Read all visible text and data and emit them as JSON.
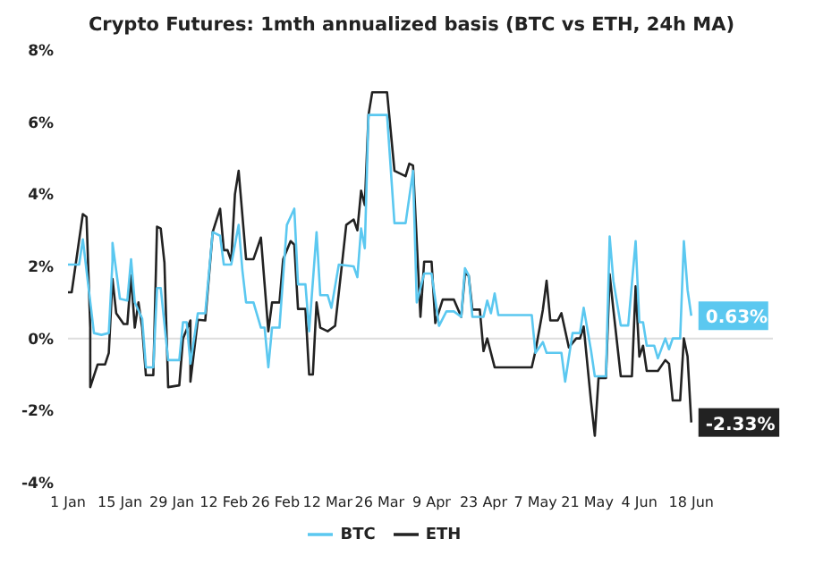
{
  "chart_data": {
    "type": "line",
    "title": "Crypto Futures: 1mth annualized basis (BTC vs ETH, 24h MA)",
    "xlim": [
      "--01-01",
      "--07-10"
    ],
    "xticks": [
      {
        "value": "--01-01",
        "label": "1 Jan"
      },
      {
        "value": "--01-15",
        "label": "15 Jan"
      },
      {
        "value": "--01-29",
        "label": "29 Jan"
      },
      {
        "value": "--02-12",
        "label": "12 Feb"
      },
      {
        "value": "--02-26",
        "label": "26 Feb"
      },
      {
        "value": "--03-12",
        "label": "12 Mar"
      },
      {
        "value": "--03-26",
        "label": "26 Mar"
      },
      {
        "value": "--04-09",
        "label": "9 Apr"
      },
      {
        "value": "--04-23",
        "label": "23 Apr"
      },
      {
        "value": "--05-07",
        "label": "7 May"
      },
      {
        "value": "--05-21",
        "label": "21 May"
      },
      {
        "value": "--06-04",
        "label": "4 Jun"
      },
      {
        "value": "--06-18",
        "label": "18 Jun"
      }
    ],
    "ylim": [
      -4,
      8
    ],
    "yticks": [
      {
        "value": -4,
        "label": "-4%"
      },
      {
        "value": -2,
        "label": "-2%"
      },
      {
        "value": 0,
        "label": "0%"
      },
      {
        "value": 2,
        "label": "2%"
      },
      {
        "value": 4,
        "label": "4%"
      },
      {
        "value": 6,
        "label": "6%"
      },
      {
        "value": 8,
        "label": "8%"
      }
    ],
    "grid": false,
    "legend": "bottom",
    "marker": "none",
    "line_style": "solid",
    "ref_lines": [
      {
        "axis": "y",
        "value": 0,
        "color": "#dddddd"
      }
    ],
    "annotations": [
      {
        "text": "0.63%",
        "x": "--06-18",
        "y": 0.63
      },
      {
        "text": "-2.33%",
        "x": "--06-18",
        "y": -2.33
      }
    ],
    "series": [
      {
        "name": "ETH",
        "color": "#222222",
        "x": [
          "--01-01",
          "--01-02",
          "--01-05",
          "--01-06",
          "--01-07",
          "--01-07",
          "--01-09",
          "--01-11",
          "--01-12",
          "--01-13",
          "--01-14",
          "--01-16",
          "--01-17",
          "--01-18",
          "--01-19",
          "--01-20",
          "--01-21",
          "--01-22",
          "--01-24",
          "--01-25",
          "--01-26",
          "--01-27",
          "--01-28",
          "--01-31",
          "--02-01",
          "--02-03",
          "--02-03",
          "--02-05",
          "--02-07",
          "--02-09",
          "--02-11",
          "--02-12",
          "--02-13",
          "--02-14",
          "--02-15",
          "--02-16",
          "--02-18",
          "--02-20",
          "--02-22",
          "--02-23",
          "--02-24",
          "--02-25",
          "--02-27",
          "--02-28",
          "--03-02",
          "--03-03",
          "--03-04",
          "--03-06",
          "--03-07",
          "--03-08",
          "--03-09",
          "--03-10",
          "--03-12",
          "--03-14",
          "--03-16",
          "--03-17",
          "--03-19",
          "--03-20",
          "--03-21",
          "--03-22",
          "--03-23",
          "--03-24",
          "--03-28",
          "--03-30",
          "--04-02",
          "--04-03",
          "--04-04",
          "--04-06",
          "--04-07",
          "--04-09",
          "--04-10",
          "--04-12",
          "--04-15",
          "--04-17",
          "--04-18",
          "--04-19",
          "--04-20",
          "--04-22",
          "--04-23",
          "--04-24",
          "--04-26",
          "--05-06",
          "--05-07",
          "--05-09",
          "--05-10",
          "--05-11",
          "--05-13",
          "--05-14",
          "--05-16",
          "--05-18",
          "--05-19",
          "--05-20",
          "--05-22",
          "--05-22",
          "--05-23",
          "--05-24",
          "--05-26",
          "--05-27",
          "--05-28",
          "--05-30",
          "--06-02",
          "--06-03",
          "--06-04",
          "--06-05",
          "--06-06",
          "--06-09",
          "--06-11",
          "--06-12",
          "--06-13",
          "--06-15",
          "--06-16",
          "--06-17",
          "--06-18"
        ],
        "values": [
          1.28,
          1.28,
          3.45,
          3.37,
          0.3,
          -1.35,
          -0.72,
          -0.72,
          -0.4,
          1.65,
          0.7,
          0.4,
          0.4,
          1.75,
          0.3,
          1.0,
          0.3,
          -1.02,
          -1.02,
          3.1,
          3.05,
          2.1,
          -1.35,
          -1.3,
          0,
          0.5,
          -1.2,
          0.52,
          0.5,
          2.95,
          3.6,
          2.45,
          2.45,
          2.15,
          4.0,
          4.65,
          2.2,
          2.2,
          2.8,
          1.5,
          0.2,
          1.0,
          1.0,
          2.2,
          2.7,
          2.6,
          0.82,
          0.82,
          -1.0,
          -1.0,
          1.0,
          0.3,
          0.2,
          0.35,
          2.2,
          3.15,
          3.3,
          3.0,
          4.1,
          3.7,
          6.2,
          6.83,
          6.83,
          4.65,
          4.5,
          4.85,
          4.8,
          0.6,
          2.13,
          2.13,
          0.43,
          1.08,
          1.08,
          0.6,
          1.8,
          1.75,
          0.8,
          0.8,
          -0.35,
          0,
          -0.8,
          -0.8,
          -0.35,
          0.8,
          1.6,
          0.5,
          0.5,
          0.7,
          -0.25,
          0,
          0,
          0.33,
          -1.77,
          -1.77,
          -2.7,
          -1.1,
          -1.1,
          1.78,
          0.8,
          -1.05,
          -1.05,
          1.45,
          -0.5,
          -0.2,
          -0.9,
          -0.9,
          -0.6,
          -0.7,
          -1.72,
          -1.72,
          0,
          -0.5,
          -2.33
        ]
      },
      {
        "name": "BTC",
        "color": "#5bc8f0",
        "x": [
          "--01-01",
          "--01-04",
          "--01-05",
          "--01-08",
          "--01-10",
          "--01-12",
          "--01-13",
          "--01-13",
          "--01-15",
          "--01-17",
          "--01-18",
          "--01-19",
          "--01-21",
          "--01-22",
          "--01-24",
          "--01-25",
          "--01-26",
          "--01-28",
          "--01-31",
          "--02-01",
          "--02-02",
          "--02-03",
          "--02-05",
          "--02-07",
          "--02-09",
          "--02-11",
          "--02-12",
          "--02-14",
          "--02-16",
          "--02-17",
          "--02-18",
          "--02-20",
          "--02-22",
          "--02-23",
          "--02-24",
          "--02-25",
          "--02-27",
          "--03-01",
          "--03-03",
          "--03-04",
          "--03-06",
          "--03-07",
          "--03-09",
          "--03-10",
          "--03-12",
          "--03-13",
          "--03-15",
          "--03-19",
          "--03-20",
          "--03-21",
          "--03-22",
          "--03-23",
          "--03-28",
          "--03-30",
          "--04-02",
          "--04-04",
          "--04-04",
          "--04-05",
          "--04-07",
          "--04-09",
          "--04-11",
          "--04-13",
          "--04-15",
          "--04-17",
          "--04-18",
          "--04-19",
          "--04-20",
          "--04-23",
          "--04-24",
          "--04-25",
          "--04-26",
          "--04-27",
          "--05-06",
          "--05-07",
          "--05-09",
          "--05-10",
          "--05-14",
          "--05-15",
          "--05-17",
          "--05-19",
          "--05-20",
          "--05-22",
          "--05-23",
          "--05-26",
          "--05-27",
          "--05-28",
          "--05-30",
          "--06-01",
          "--06-03",
          "--06-04",
          "--06-05",
          "--06-06",
          "--06-08",
          "--06-09",
          "--06-11",
          "--06-12",
          "--06-13",
          "--06-15",
          "--06-16",
          "--06-17",
          "--06-18"
        ],
        "values": [
          2.05,
          2.05,
          2.75,
          0.15,
          0.1,
          0.15,
          2.15,
          2.65,
          1.1,
          1.05,
          2.2,
          1.0,
          0.55,
          -0.8,
          -0.8,
          1.4,
          1.4,
          -0.6,
          -0.6,
          0.45,
          0.45,
          -0.7,
          0.7,
          0.7,
          2.95,
          2.85,
          2.05,
          2.05,
          3.15,
          1.9,
          1.0,
          1.0,
          0.3,
          0.3,
          -0.8,
          0.3,
          0.3,
          3.15,
          3.6,
          1.5,
          1.5,
          0.2,
          2.95,
          1.2,
          1.2,
          0.85,
          2.05,
          2.0,
          1.7,
          3.05,
          2.5,
          6.2,
          6.2,
          3.2,
          3.2,
          4.65,
          4.65,
          1.0,
          1.8,
          1.8,
          0.35,
          0.75,
          0.75,
          0.6,
          1.95,
          1.75,
          0.6,
          0.6,
          1.05,
          0.7,
          1.25,
          0.65,
          0.65,
          -0.4,
          -0.1,
          -0.4,
          -0.4,
          -1.2,
          0.15,
          0.15,
          0.85,
          -0.35,
          -1.05,
          -1.05,
          2.83,
          1.6,
          0.36,
          0.36,
          2.7,
          0.45,
          0.45,
          -0.2,
          -0.2,
          -0.55,
          0.0,
          -0.3,
          0,
          0,
          2.7,
          1.35,
          0.63
        ]
      }
    ]
  }
}
